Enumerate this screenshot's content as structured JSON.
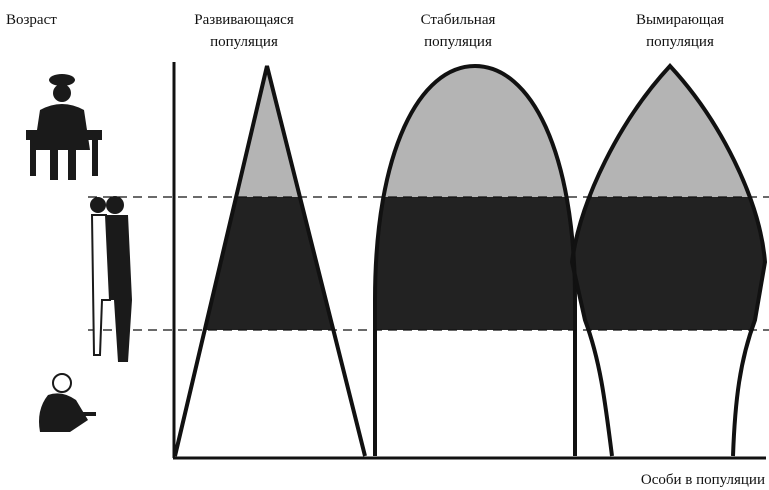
{
  "age_label": "Возраст",
  "populations": [
    {
      "line1": "Развивающаяся",
      "line2": "популяция"
    },
    {
      "line1": "Стабильная",
      "line2": "популяция"
    },
    {
      "line1": "Вымирающая",
      "line2": "популяция"
    }
  ],
  "x_axis_label": "Особи в популяции"
}
